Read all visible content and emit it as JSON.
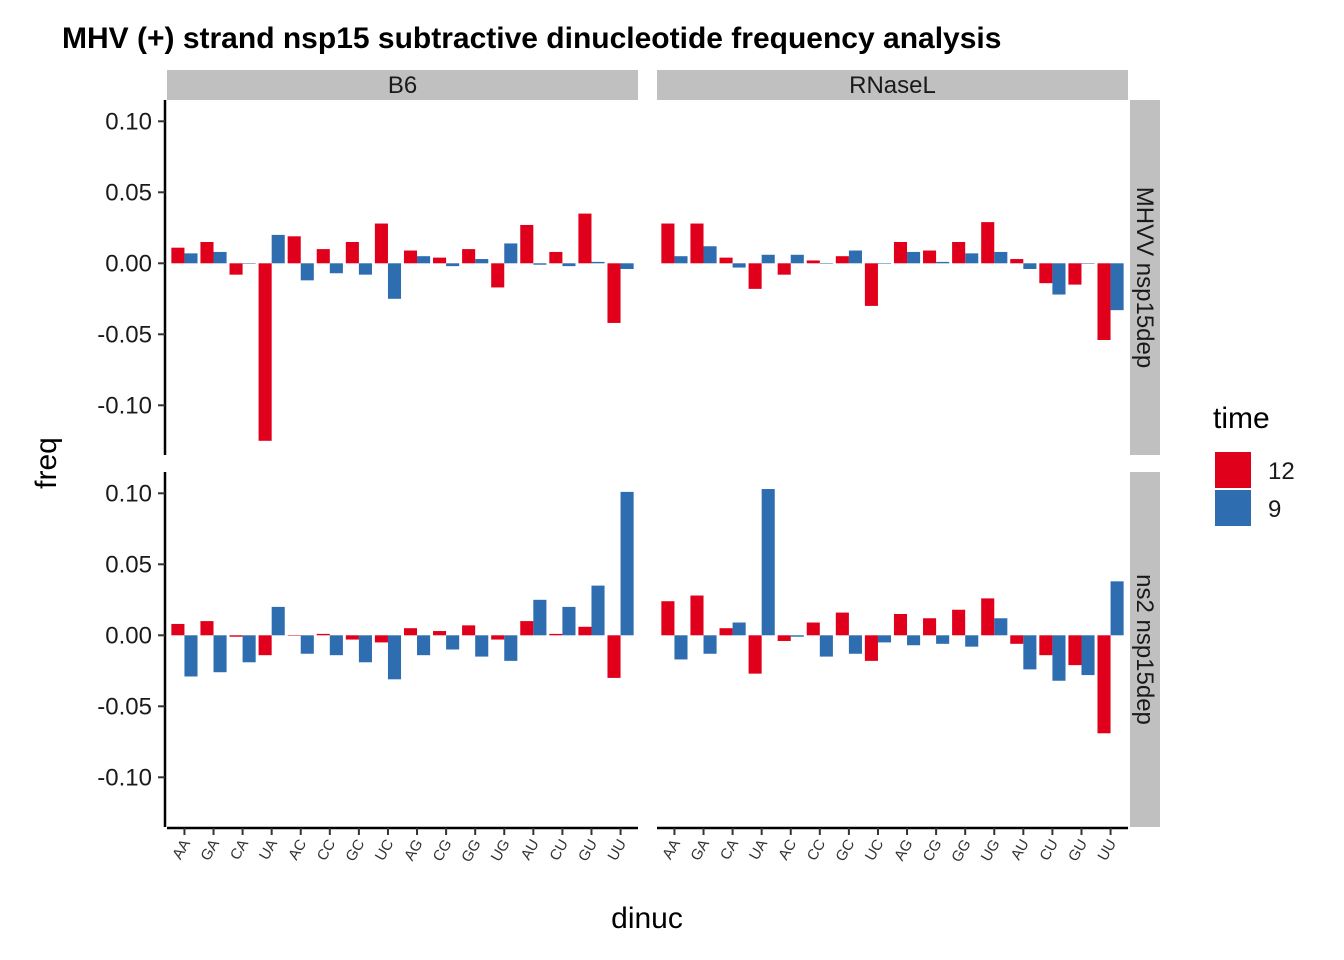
{
  "chart_data": {
    "type": "bar",
    "title": "MHV (+) strand nsp15 subtractive dinucleotide frequency analysis",
    "xlabel": "dinuc",
    "ylabel": "freq",
    "ylim": [
      -0.135,
      0.115
    ],
    "y_ticks": [
      "0.10",
      "0.05",
      "0.00",
      "-0.05",
      "-0.10"
    ],
    "y_tick_values": [
      0.1,
      0.05,
      0.0,
      -0.05,
      -0.1
    ],
    "categories": [
      "AA",
      "GA",
      "CA",
      "UA",
      "AC",
      "CC",
      "GC",
      "UC",
      "AG",
      "CG",
      "GG",
      "UG",
      "AU",
      "CU",
      "GU",
      "UU"
    ],
    "column_facets": [
      "B6",
      "RNaseL"
    ],
    "row_facets": [
      "MHVV_nsp15dep",
      "ns2_nsp15dep"
    ],
    "legend": {
      "title": "time",
      "position": "right",
      "entries": [
        {
          "label": "12",
          "color": "#E0001B"
        },
        {
          "label": "9",
          "color": "#2E6DB0"
        }
      ]
    },
    "grid": false,
    "panels": [
      {
        "col": "B6",
        "row": "MHVV_nsp15dep",
        "series": [
          {
            "name": "12",
            "values": [
              0.011,
              0.015,
              -0.008,
              -0.125,
              0.019,
              0.01,
              0.015,
              0.028,
              0.009,
              0.004,
              0.01,
              -0.017,
              0.027,
              0.008,
              0.035,
              -0.042
            ]
          },
          {
            "name": "9",
            "values": [
              0.007,
              0.008,
              0.0,
              0.02,
              -0.012,
              -0.007,
              -0.008,
              -0.025,
              0.005,
              -0.002,
              0.003,
              0.014,
              -0.001,
              -0.002,
              0.001,
              -0.004
            ]
          }
        ]
      },
      {
        "col": "RNaseL",
        "row": "MHVV_nsp15dep",
        "series": [
          {
            "name": "12",
            "values": [
              0.028,
              0.028,
              0.004,
              -0.018,
              -0.008,
              0.002,
              0.005,
              -0.03,
              0.015,
              0.009,
              0.015,
              0.029,
              0.003,
              -0.014,
              -0.015,
              -0.054
            ]
          },
          {
            "name": "9",
            "values": [
              0.005,
              0.012,
              -0.003,
              0.006,
              0.006,
              0.0,
              0.009,
              0.0,
              0.008,
              0.001,
              0.007,
              0.008,
              -0.004,
              -0.022,
              0.0,
              -0.033
            ]
          }
        ]
      },
      {
        "col": "B6",
        "row": "ns2_nsp15dep",
        "series": [
          {
            "name": "12",
            "values": [
              0.008,
              0.01,
              -0.001,
              -0.014,
              0.0,
              0.001,
              -0.003,
              -0.005,
              0.005,
              0.003,
              0.007,
              -0.003,
              0.01,
              0.001,
              0.006,
              -0.03
            ]
          },
          {
            "name": "9",
            "values": [
              -0.029,
              -0.026,
              -0.019,
              0.02,
              -0.013,
              -0.014,
              -0.019,
              -0.031,
              -0.014,
              -0.01,
              -0.015,
              -0.018,
              0.025,
              0.02,
              0.035,
              0.101
            ]
          }
        ]
      },
      {
        "col": "RNaseL",
        "row": "ns2_nsp15dep",
        "series": [
          {
            "name": "12",
            "values": [
              0.024,
              0.028,
              0.005,
              -0.027,
              -0.004,
              0.009,
              0.016,
              -0.018,
              0.015,
              0.012,
              0.018,
              0.026,
              -0.006,
              -0.014,
              -0.021,
              -0.069
            ]
          },
          {
            "name": "9",
            "values": [
              -0.017,
              -0.013,
              0.009,
              0.103,
              -0.001,
              -0.015,
              -0.013,
              -0.005,
              -0.007,
              -0.006,
              -0.008,
              0.012,
              -0.024,
              -0.032,
              -0.028,
              0.038
            ]
          }
        ]
      }
    ]
  }
}
